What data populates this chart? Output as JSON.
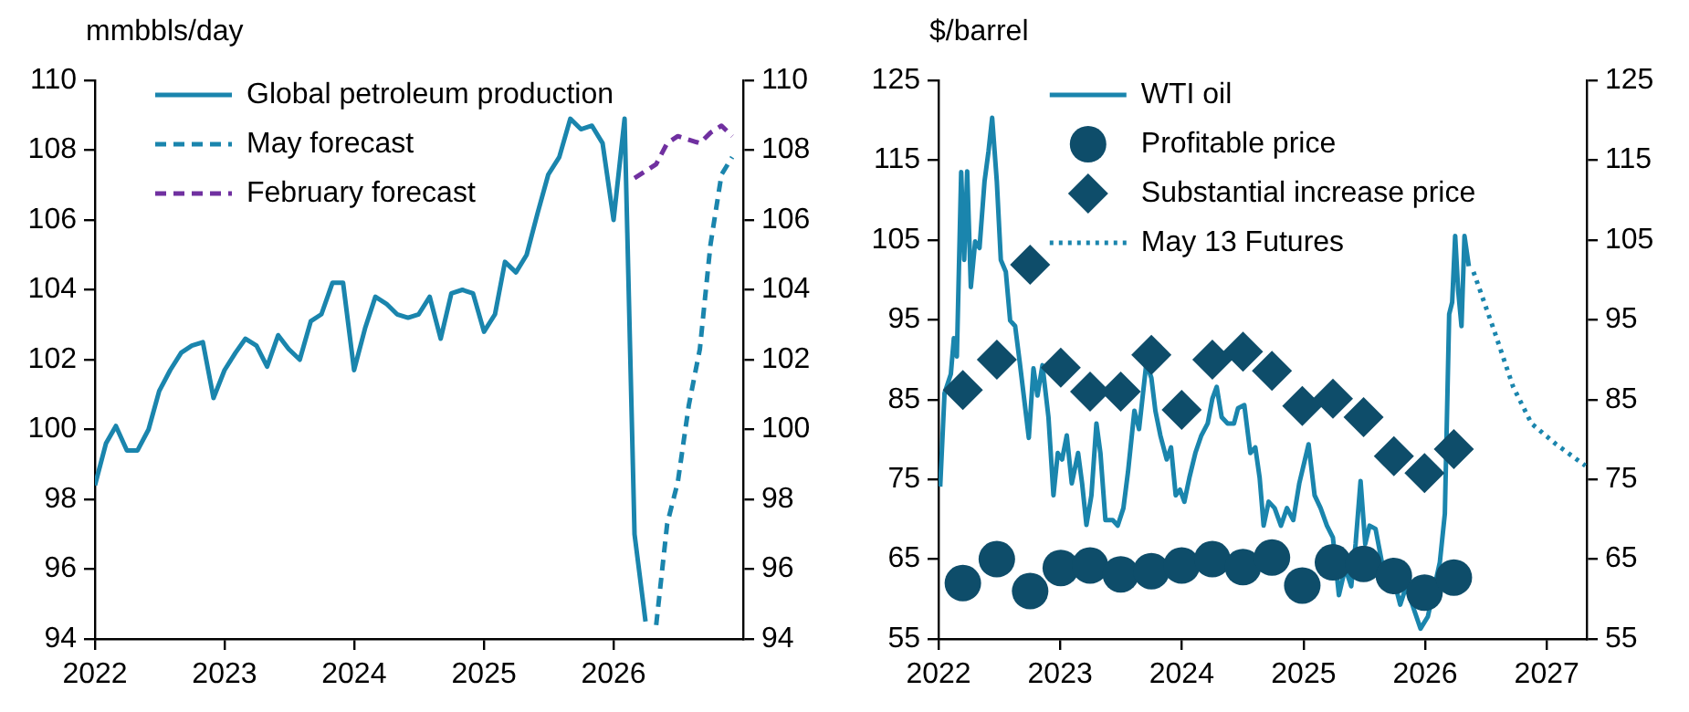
{
  "chart_data": [
    {
      "type": "line",
      "ylabel": "mmbbls/day",
      "xlim": [
        "2022-01-01",
        "2027-01-01"
      ],
      "xticks": [
        "2022",
        "2023",
        "2024",
        "2025",
        "2026"
      ],
      "ylim": [
        94,
        110
      ],
      "yticks": [
        94,
        96,
        98,
        100,
        102,
        104,
        106,
        108,
        110
      ],
      "y2lim": [
        94,
        110
      ],
      "y2ticks": [
        94,
        96,
        98,
        100,
        102,
        104,
        106,
        108,
        110
      ],
      "legend": "top left",
      "series": [
        {
          "name": "Global petroleum production",
          "type": "line",
          "color": "#1a85ad",
          "line_style": "solid",
          "x": [
            "2022-01",
            "2022-02",
            "2022-03",
            "2022-04",
            "2022-05",
            "2022-06",
            "2022-07",
            "2022-08",
            "2022-09",
            "2022-10",
            "2022-11",
            "2022-12",
            "2023-01",
            "2023-02",
            "2023-03",
            "2023-04",
            "2023-05",
            "2023-06",
            "2023-07",
            "2023-08",
            "2023-09",
            "2023-10",
            "2023-11",
            "2023-12",
            "2024-01",
            "2024-02",
            "2024-03",
            "2024-04",
            "2024-05",
            "2024-06",
            "2024-07",
            "2024-08",
            "2024-09",
            "2024-10",
            "2024-11",
            "2024-12",
            "2025-01",
            "2025-02",
            "2025-03",
            "2025-04",
            "2025-05",
            "2025-06",
            "2025-07",
            "2025-08",
            "2025-09",
            "2025-10",
            "2025-11",
            "2025-12",
            "2026-01",
            "2026-02",
            "2026-03",
            "2026-04"
          ],
          "values": [
            98.4,
            99.6,
            100.1,
            99.4,
            99.4,
            100.0,
            101.1,
            101.7,
            102.2,
            102.4,
            102.5,
            100.9,
            101.7,
            102.2,
            102.6,
            102.4,
            101.8,
            102.7,
            102.3,
            102.0,
            103.1,
            103.3,
            104.2,
            104.2,
            101.7,
            102.9,
            103.8,
            103.6,
            103.3,
            103.2,
            103.3,
            103.8,
            102.6,
            103.9,
            104.0,
            103.9,
            102.8,
            103.3,
            104.8,
            104.5,
            105.0,
            106.2,
            107.3,
            107.8,
            108.9,
            108.6,
            108.7,
            108.2,
            106.0,
            108.9,
            97.0,
            94.5
          ]
        },
        {
          "name": "May forecast",
          "type": "line",
          "color": "#1a85ad",
          "line_style": "dashed",
          "x": [
            "2026-05",
            "2026-06",
            "2026-07",
            "2026-08",
            "2026-09",
            "2026-10",
            "2026-11",
            "2026-12"
          ],
          "values": [
            94.4,
            97.3,
            98.5,
            100.7,
            102.3,
            105.3,
            107.3,
            107.8
          ]
        },
        {
          "name": "February forecast",
          "type": "line",
          "color": "#7030a0",
          "line_style": "dashed",
          "x": [
            "2026-03",
            "2026-04",
            "2026-05",
            "2026-06",
            "2026-07",
            "2026-08",
            "2026-09",
            "2026-10",
            "2026-11",
            "2026-12"
          ],
          "values": [
            107.2,
            107.4,
            107.6,
            108.2,
            108.4,
            108.3,
            108.2,
            108.5,
            108.7,
            108.4
          ]
        }
      ]
    },
    {
      "type": "line",
      "ylabel": "$/barrel",
      "xlim": [
        "2022-01-01",
        "2027-05-01"
      ],
      "xticks": [
        "2022",
        "2023",
        "2024",
        "2025",
        "2026",
        "2027"
      ],
      "ylim": [
        55,
        125
      ],
      "yticks": [
        55,
        65,
        75,
        85,
        95,
        105,
        115,
        125
      ],
      "y2lim": [
        55,
        125
      ],
      "y2ticks": [
        55,
        65,
        75,
        85,
        95,
        105,
        115,
        125
      ],
      "legend": "top",
      "series": [
        {
          "name": "WTI oil",
          "type": "line",
          "color": "#1a85ad",
          "line_style": "solid",
          "x": [
            "2022-01-06",
            "2022-01-19",
            "2022-02-07",
            "2022-02-16",
            "2022-02-25",
            "2022-03-10",
            "2022-03-19",
            "2022-03-28",
            "2022-04-08",
            "2022-04-21",
            "2022-05-04",
            "2022-05-19",
            "2022-05-31",
            "2022-06-11",
            "2022-06-25",
            "2022-07-07",
            "2022-07-22",
            "2022-08-04",
            "2022-08-19",
            "2022-09-02",
            "2022-09-15",
            "2022-09-29",
            "2022-10-13",
            "2022-10-25",
            "2022-11-09",
            "2022-11-27",
            "2022-12-12",
            "2022-12-25",
            "2023-01-07",
            "2023-01-21",
            "2023-02-05",
            "2023-02-24",
            "2023-03-08",
            "2023-03-21",
            "2023-04-05",
            "2023-04-20",
            "2023-05-02",
            "2023-05-17",
            "2023-06-08",
            "2023-06-23",
            "2023-07-10",
            "2023-07-24",
            "2023-08-12",
            "2023-08-26",
            "2023-09-17",
            "2023-10-02",
            "2023-10-14",
            "2023-10-29",
            "2023-11-17",
            "2023-11-30",
            "2023-12-14",
            "2023-12-27",
            "2024-01-09",
            "2024-01-24",
            "2024-02-11",
            "2024-02-29",
            "2024-03-19",
            "2024-04-02",
            "2024-04-15",
            "2024-04-30",
            "2024-05-18",
            "2024-06-06",
            "2024-06-18",
            "2024-07-07",
            "2024-07-25",
            "2024-08-09",
            "2024-08-22",
            "2024-09-03",
            "2024-09-18",
            "2024-10-06",
            "2024-10-25",
            "2024-11-12",
            "2024-12-01",
            "2024-12-19",
            "2025-01-16",
            "2025-02-03",
            "2025-02-21",
            "2025-03-12",
            "2025-03-30",
            "2025-04-17",
            "2025-05-06",
            "2025-05-24",
            "2025-06-06",
            "2025-06-21",
            "2025-07-05",
            "2025-07-18",
            "2025-08-05",
            "2025-08-24",
            "2025-09-11",
            "2025-09-29",
            "2025-10-18",
            "2025-11-05",
            "2025-11-29",
            "2025-12-18",
            "2026-01-09",
            "2026-02-14",
            "2026-03-01",
            "2026-03-14",
            "2026-03-23",
            "2026-04-01",
            "2026-04-10",
            "2026-04-20",
            "2026-04-29",
            "2026-05-12"
          ],
          "values": [
            74.1,
            85.8,
            88.2,
            92.7,
            90.4,
            113.5,
            102.5,
            113.6,
            99.1,
            104.8,
            104.0,
            112.3,
            116.1,
            120.3,
            112.3,
            102.5,
            101.0,
            94.9,
            94.2,
            89.6,
            85.1,
            80.2,
            88.9,
            85.5,
            89.3,
            82.8,
            73.0,
            78.3,
            77.5,
            80.5,
            74.5,
            78.3,
            74.5,
            69.3,
            73.0,
            82.0,
            78.3,
            69.9,
            69.9,
            69.2,
            71.4,
            76.0,
            83.6,
            81.3,
            89.6,
            87.7,
            83.6,
            80.5,
            77.5,
            79.0,
            73.0,
            73.7,
            72.2,
            75.2,
            78.3,
            80.5,
            82.0,
            85.1,
            86.6,
            82.8,
            82.0,
            82.0,
            83.9,
            84.3,
            78.3,
            79.0,
            75.2,
            69.2,
            72.2,
            71.4,
            69.2,
            71.4,
            69.9,
            74.5,
            79.4,
            73.0,
            71.4,
            69.2,
            67.7,
            60.5,
            63.9,
            61.6,
            66.9,
            74.8,
            66.9,
            69.2,
            68.8,
            64.6,
            63.9,
            62.4,
            59.3,
            61.6,
            58.6,
            56.3,
            57.8,
            64.6,
            70.7,
            95.7,
            97.2,
            105.5,
            98.7,
            94.2,
            105.5,
            101.7
          ]
        },
        {
          "name": "Profitable price",
          "type": "scatter",
          "color": "#0e4d6a",
          "marker": "circle",
          "x": [
            "2022-03-15",
            "2022-06-25",
            "2022-10-03",
            "2023-01-03",
            "2023-04-01",
            "2023-07-02",
            "2023-10-02",
            "2024-01-01",
            "2024-04-02",
            "2024-07-03",
            "2024-09-28",
            "2024-12-28",
            "2025-03-30",
            "2025-06-30",
            "2025-09-29",
            "2025-12-30",
            "2026-03-28"
          ],
          "values": [
            62.0,
            65.0,
            61.0,
            63.9,
            64.2,
            63.1,
            63.5,
            64.2,
            65.0,
            64.0,
            65.2,
            61.7,
            64.6,
            64.4,
            62.9,
            60.8,
            62.7
          ]
        },
        {
          "name": "Substantial increase price",
          "type": "scatter",
          "color": "#0e4d6a",
          "marker": "diamond",
          "x": [
            "2022-03-15",
            "2022-06-25",
            "2022-10-03",
            "2023-01-03",
            "2023-04-01",
            "2023-07-02",
            "2023-10-02",
            "2024-01-01",
            "2024-04-02",
            "2024-07-03",
            "2024-09-28",
            "2024-12-28",
            "2025-03-30",
            "2025-06-30",
            "2025-09-29",
            "2025-12-30",
            "2026-03-28"
          ],
          "values": [
            86.2,
            90.0,
            101.9,
            89.0,
            86.0,
            86.0,
            90.6,
            83.7,
            90.0,
            91.0,
            88.6,
            84.2,
            85.1,
            82.8,
            77.9,
            75.8,
            78.8
          ]
        },
        {
          "name": "May 13 Futures",
          "type": "line",
          "color": "#1a85ad",
          "line_style": "dotted",
          "x": [
            "2026-05-26",
            "2026-07-29",
            "2026-09-22",
            "2026-11-16",
            "2027-01-29",
            "2027-04-27"
          ],
          "values": [
            101.0,
            93.4,
            86.6,
            82.0,
            79.4,
            76.7
          ]
        }
      ]
    }
  ]
}
